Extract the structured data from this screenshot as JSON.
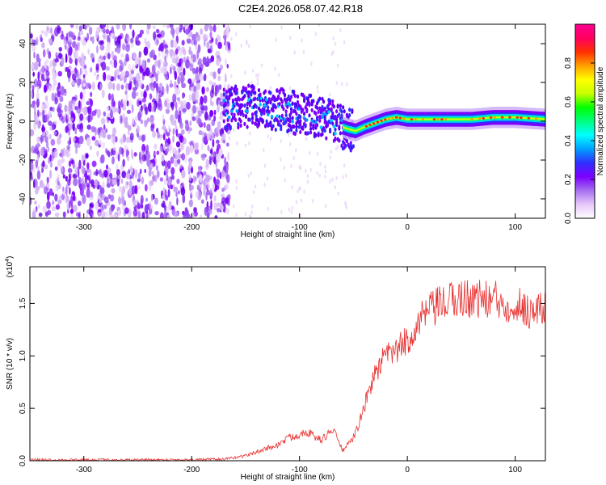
{
  "title": "C2E4.2026.058.07.42.R18",
  "chart_data": [
    {
      "type": "heatmap",
      "xlabel": "Height of straight line (km)",
      "ylabel": "Frequency (Hz)",
      "xlim": [
        -350,
        128
      ],
      "ylim": [
        -50,
        50
      ],
      "xticks": [
        -300,
        -200,
        -100,
        0,
        100
      ],
      "yticks": [
        -40,
        -20,
        0,
        20,
        40
      ],
      "colorbar": {
        "label": "Normalized spectral amplitude",
        "range": [
          0,
          1
        ],
        "ticks": [
          "0.0",
          "0.2",
          "0.4",
          "0.6",
          "0.8"
        ],
        "colors": [
          "#ffffff",
          "#e6c8f8",
          "#a66ff0",
          "#7d00ff",
          "#2f2fff",
          "#00a0ff",
          "#00ffff",
          "#00ff80",
          "#00ff00",
          "#c8ff00",
          "#ffff00",
          "#ffa000",
          "#ff3000",
          "#ff0060",
          "#ff0090"
        ]
      },
      "signal_trace": {
        "x": [
          -170,
          -150,
          -130,
          -110,
          -90,
          -75,
          -65,
          -55,
          -48,
          -40,
          -30,
          -20,
          -10,
          0,
          20,
          40,
          60,
          80,
          100,
          128
        ],
        "y": [
          6,
          8,
          7,
          5,
          3,
          1,
          -2,
          -4,
          -5,
          -3,
          -1,
          1,
          2,
          1,
          1,
          1,
          1,
          2,
          2,
          1
        ]
      }
    },
    {
      "type": "line",
      "xlabel": "Height of straight line (km)",
      "ylabel": "SNR (10 * v/v)",
      "yscale_label": "(x10",
      "yscale_exponent": "4",
      "yscale_close": ")",
      "xlim": [
        -350,
        128
      ],
      "ylim": [
        0,
        1.85
      ],
      "xticks": [
        -300,
        -200,
        -100,
        0,
        100
      ],
      "yticks": [
        "0.0",
        "0.5",
        "1.0",
        "1.5"
      ],
      "color": "#e83030",
      "series": [
        {
          "x": [
            -350,
            -300,
            -250,
            -200,
            -170,
            -160,
            -150,
            -140,
            -130,
            -120,
            -110,
            -100,
            -95,
            -90,
            -85,
            -80,
            -75,
            -70,
            -65,
            -60,
            -55,
            -50,
            -45,
            -40,
            -35,
            -30,
            -25,
            -20,
            -15,
            -10,
            -5,
            0,
            5,
            10,
            15,
            20,
            25,
            30,
            35,
            40,
            45,
            50,
            55,
            60,
            65,
            70,
            75,
            80,
            85,
            90,
            95,
            100,
            105,
            110,
            115,
            120,
            128
          ],
          "y": [
            0.01,
            0.01,
            0.01,
            0.01,
            0.015,
            0.03,
            0.05,
            0.08,
            0.12,
            0.15,
            0.22,
            0.25,
            0.28,
            0.26,
            0.22,
            0.2,
            0.24,
            0.3,
            0.22,
            0.1,
            0.15,
            0.22,
            0.35,
            0.5,
            0.7,
            0.82,
            0.92,
            1.0,
            1.02,
            1.05,
            1.1,
            1.15,
            1.22,
            1.3,
            1.38,
            1.42,
            1.45,
            1.48,
            1.5,
            1.52,
            1.55,
            1.55,
            1.55,
            1.55,
            1.55,
            1.54,
            1.53,
            1.55,
            1.5,
            1.5,
            1.5,
            1.5,
            1.48,
            1.45,
            1.42,
            1.43,
            1.45
          ]
        }
      ]
    }
  ]
}
